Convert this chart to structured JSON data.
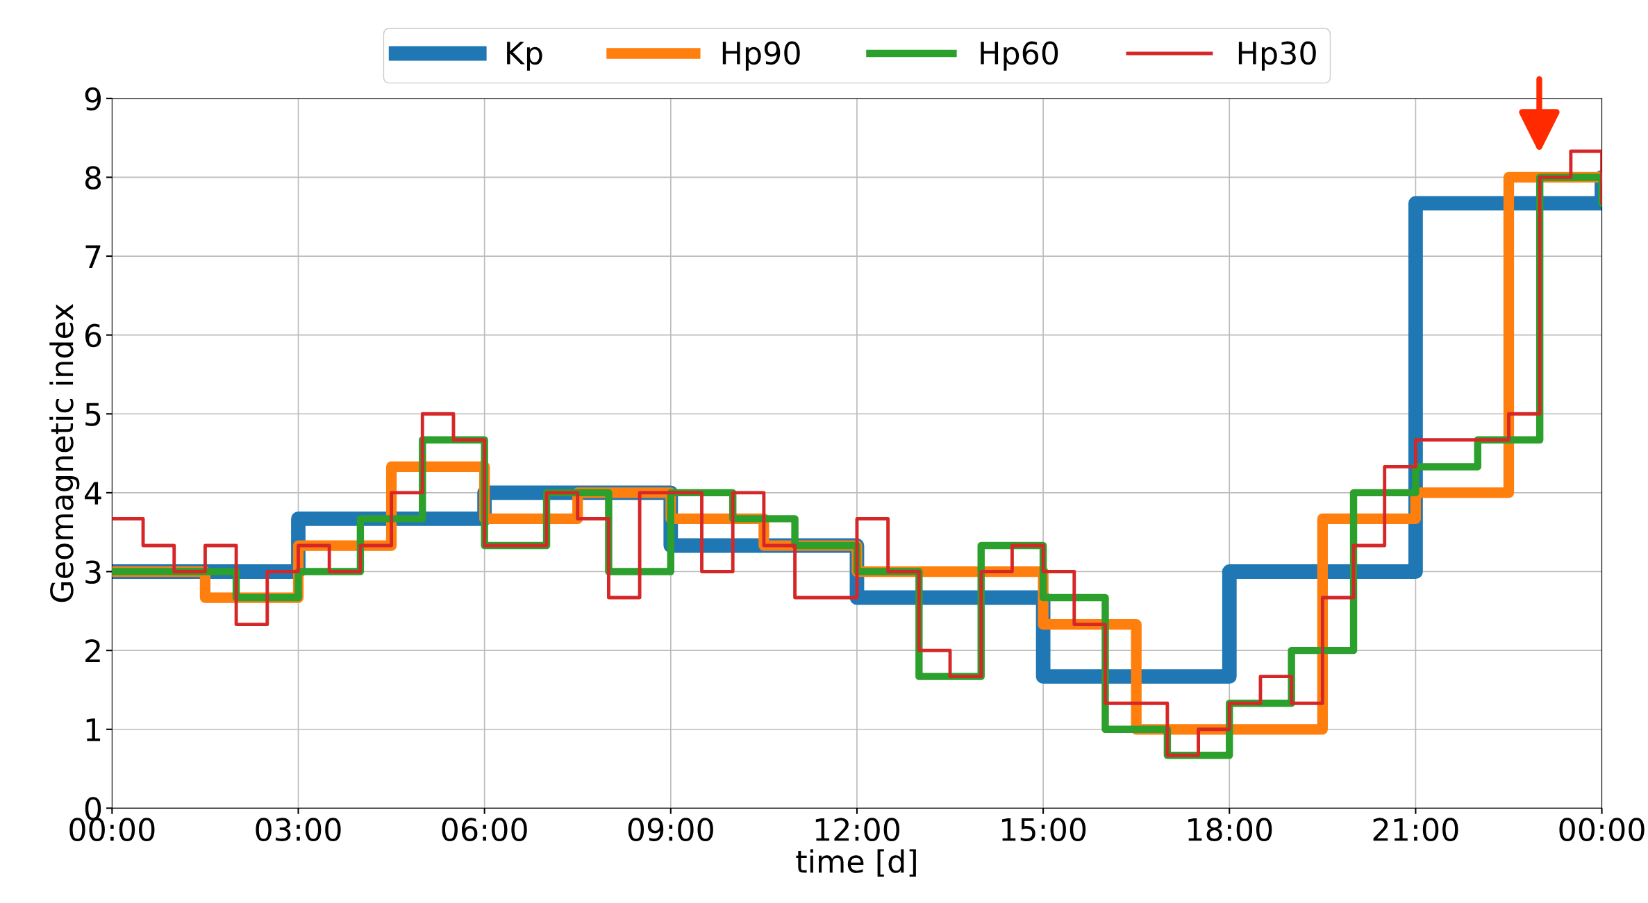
{
  "chart_data": {
    "type": "step",
    "xlabel": "time [d]",
    "ylabel": "Geomagnetic index",
    "xlim": [
      0,
      24
    ],
    "ylim": [
      0,
      9
    ],
    "xticks": [
      {
        "value": 0,
        "label": "00:00"
      },
      {
        "value": 3,
        "label": "03:00"
      },
      {
        "value": 6,
        "label": "06:00"
      },
      {
        "value": 9,
        "label": "09:00"
      },
      {
        "value": 12,
        "label": "12:00"
      },
      {
        "value": 15,
        "label": "15:00"
      },
      {
        "value": 18,
        "label": "18:00"
      },
      {
        "value": 21,
        "label": "21:00"
      },
      {
        "value": 24,
        "label": "00:00"
      }
    ],
    "yticks": [
      0,
      1,
      2,
      3,
      4,
      5,
      6,
      7,
      8,
      9
    ],
    "grid": true,
    "legend": "top",
    "series": [
      {
        "name": "Kp",
        "color": "#1f77b4",
        "x": [
          0,
          3,
          6,
          9,
          12,
          15,
          18,
          21,
          24
        ],
        "values": [
          3.0,
          3.67,
          4.0,
          3.33,
          2.67,
          1.67,
          3.0,
          7.67,
          8.0
        ]
      },
      {
        "name": "Hp90",
        "color": "#ff7f0e",
        "x": [
          0,
          1.5,
          3,
          4.5,
          6,
          7.5,
          9,
          10.5,
          12,
          13.5,
          15,
          16.5,
          18,
          19.5,
          21,
          22.5,
          24
        ],
        "values": [
          3.0,
          2.67,
          3.33,
          4.33,
          3.67,
          4.0,
          3.67,
          3.33,
          3.0,
          3.0,
          2.33,
          1.0,
          1.0,
          3.67,
          4.0,
          8.0,
          8.0
        ]
      },
      {
        "name": "Hp60",
        "color": "#2ca02c",
        "x": [
          0,
          1,
          2,
          3,
          4,
          5,
          6,
          7,
          8,
          9,
          10,
          11,
          12,
          13,
          14,
          15,
          16,
          17,
          18,
          19,
          20,
          21,
          22,
          23,
          24
        ],
        "values": [
          3.0,
          3.0,
          2.67,
          3.0,
          3.67,
          4.67,
          3.33,
          4.0,
          3.0,
          4.0,
          3.67,
          3.33,
          3.0,
          1.67,
          3.33,
          2.67,
          1.0,
          0.67,
          1.33,
          2.0,
          4.0,
          4.33,
          4.67,
          8.0,
          7.67
        ]
      },
      {
        "name": "Hp30",
        "color": "#d62728",
        "x": [
          0,
          0.5,
          1,
          1.5,
          2,
          2.5,
          3,
          3.5,
          4,
          4.5,
          5,
          5.5,
          6,
          6.5,
          7,
          7.5,
          8,
          8.5,
          9,
          9.5,
          10,
          10.5,
          11,
          11.5,
          12,
          12.5,
          13,
          13.5,
          14,
          14.5,
          15,
          15.5,
          16,
          16.5,
          17,
          17.5,
          18,
          18.5,
          19,
          19.5,
          20,
          20.5,
          21,
          21.5,
          22,
          22.5,
          23,
          23.5,
          24
        ],
        "values": [
          3.67,
          3.33,
          3.0,
          3.33,
          2.33,
          3.0,
          3.33,
          3.0,
          3.33,
          4.0,
          5.0,
          4.67,
          3.33,
          3.33,
          4.0,
          3.67,
          2.67,
          4.0,
          4.0,
          3.0,
          4.0,
          3.33,
          2.67,
          2.67,
          3.67,
          3.0,
          2.0,
          1.67,
          3.0,
          3.33,
          3.0,
          2.33,
          1.33,
          1.33,
          0.67,
          1.0,
          1.33,
          1.67,
          1.33,
          2.67,
          3.33,
          4.33,
          4.67,
          4.67,
          4.67,
          5.0,
          8.0,
          8.33,
          7.67
        ]
      }
    ]
  }
}
